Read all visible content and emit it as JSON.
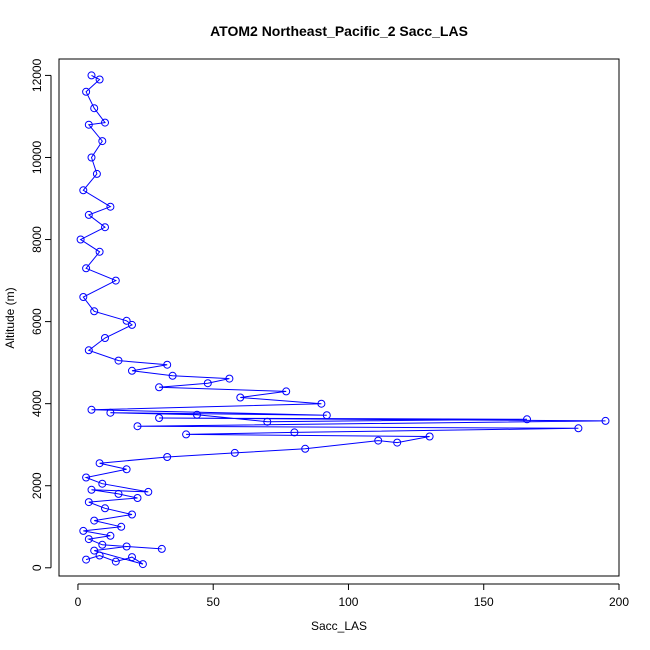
{
  "chart_data": {
    "type": "scatter",
    "title": "ATOM2 Northeast_Pacific_2 Sacc_LAS",
    "xlabel": "Sacc_LAS",
    "ylabel": "Altitude (m)",
    "xlim": [
      -7,
      200
    ],
    "ylim": [
      -200,
      12400
    ],
    "xticks": [
      "0",
      "50",
      "100",
      "150",
      "200"
    ],
    "yticks": [
      "0",
      "2000",
      "4000",
      "6000",
      "8000",
      "10000",
      "12000"
    ],
    "point_style": "open-circle",
    "connected": true,
    "color": "#0000ff",
    "series": [
      {
        "points": [
          [
            3,
            200
          ],
          [
            8,
            300
          ],
          [
            14,
            150
          ],
          [
            20,
            260
          ],
          [
            24,
            90
          ],
          [
            6,
            420
          ],
          [
            18,
            520
          ],
          [
            31,
            460
          ],
          [
            9,
            560
          ],
          [
            4,
            700
          ],
          [
            12,
            780
          ],
          [
            2,
            900
          ],
          [
            16,
            1000
          ],
          [
            6,
            1150
          ],
          [
            20,
            1300
          ],
          [
            10,
            1450
          ],
          [
            4,
            1600
          ],
          [
            22,
            1700
          ],
          [
            15,
            1800
          ],
          [
            5,
            1900
          ],
          [
            26,
            1850
          ],
          [
            9,
            2050
          ],
          [
            3,
            2200
          ],
          [
            18,
            2400
          ],
          [
            8,
            2550
          ],
          [
            33,
            2700
          ],
          [
            58,
            2800
          ],
          [
            84,
            2900
          ],
          [
            111,
            3100
          ],
          [
            118,
            3050
          ],
          [
            130,
            3200
          ],
          [
            40,
            3250
          ],
          [
            80,
            3300
          ],
          [
            185,
            3400
          ],
          [
            22,
            3450
          ],
          [
            195,
            3580
          ],
          [
            30,
            3650
          ],
          [
            166,
            3620
          ],
          [
            70,
            3560
          ],
          [
            44,
            3730
          ],
          [
            12,
            3780
          ],
          [
            92,
            3720
          ],
          [
            5,
            3850
          ],
          [
            90,
            4000
          ],
          [
            60,
            4150
          ],
          [
            77,
            4300
          ],
          [
            30,
            4400
          ],
          [
            48,
            4500
          ],
          [
            56,
            4610
          ],
          [
            35,
            4680
          ],
          [
            20,
            4800
          ],
          [
            33,
            4950
          ],
          [
            15,
            5050
          ],
          [
            4,
            5300
          ],
          [
            10,
            5600
          ],
          [
            20,
            5920
          ],
          [
            18,
            6020
          ],
          [
            6,
            6250
          ],
          [
            2,
            6600
          ],
          [
            14,
            7000
          ],
          [
            3,
            7300
          ],
          [
            8,
            7700
          ],
          [
            1,
            8000
          ],
          [
            10,
            8300
          ],
          [
            4,
            8600
          ],
          [
            12,
            8800
          ],
          [
            2,
            9200
          ],
          [
            7,
            9600
          ],
          [
            5,
            10000
          ],
          [
            9,
            10400
          ],
          [
            4,
            10800
          ],
          [
            10,
            10850
          ],
          [
            6,
            11200
          ],
          [
            3,
            11600
          ],
          [
            8,
            11900
          ],
          [
            5,
            12000
          ]
        ]
      }
    ]
  }
}
